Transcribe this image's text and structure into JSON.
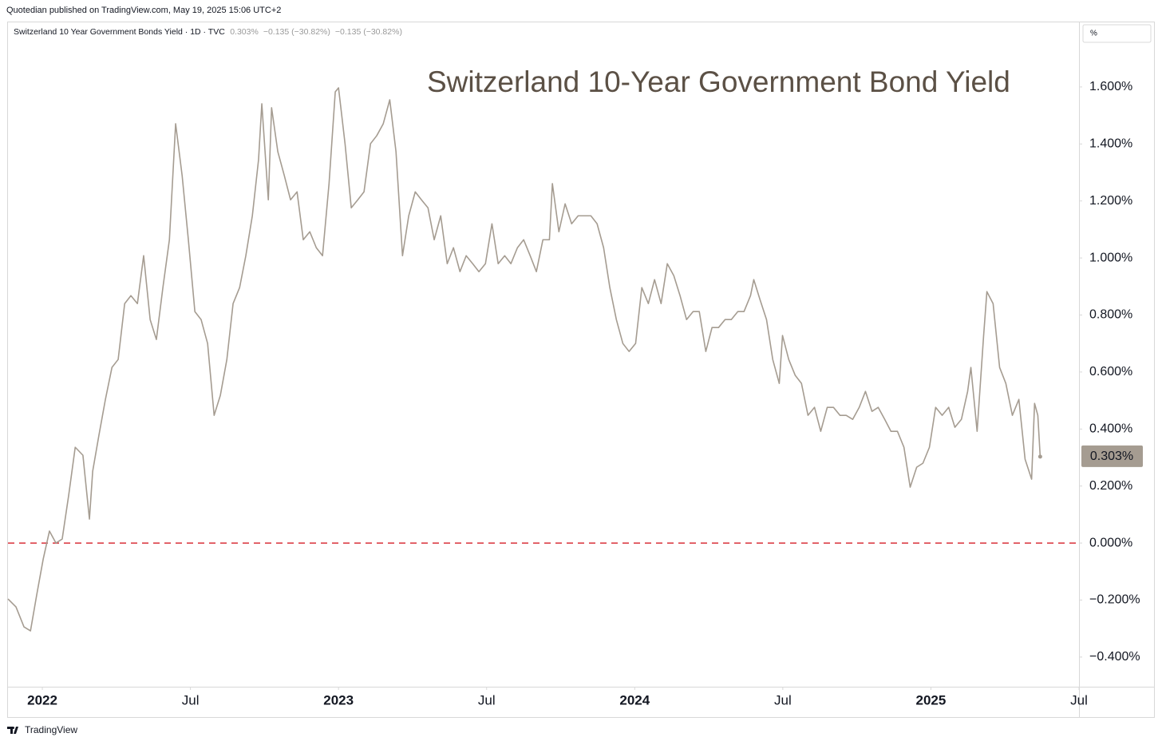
{
  "header": {
    "publisher": "Quotedian published on TradingView.com, May 19, 2025 15:06 UTC+2"
  },
  "footer": {
    "brand": "TradingView"
  },
  "chart_data": {
    "type": "line",
    "title": "Switzerland 10-Year Government Bond Yield",
    "legend_values": [
      "0.303%",
      "−0.135 (−30.82%)",
      "−0.135 (−30.82%)"
    ],
    "scale_mode": "%",
    "x": [
      2021.884,
      2021.911,
      2021.938,
      2021.96,
      2021.981,
      2022.003,
      2022.024,
      2022.046,
      2022.067,
      2022.089,
      2022.111,
      2022.137,
      2022.159,
      2022.17,
      2022.191,
      2022.213,
      2022.235,
      2022.256,
      2022.278,
      2022.299,
      2022.321,
      2022.342,
      2022.364,
      2022.385,
      2022.407,
      2022.429,
      2022.45,
      2022.472,
      2022.493,
      2022.515,
      2022.536,
      2022.558,
      2022.58,
      2022.601,
      2022.623,
      2022.644,
      2022.666,
      2022.687,
      2022.709,
      2022.73,
      2022.741,
      2022.763,
      2022.774,
      2022.795,
      2022.817,
      2022.838,
      2022.86,
      2022.881,
      2022.903,
      2022.925,
      2022.946,
      2022.968,
      2022.989,
      2023.0,
      2023.022,
      2023.043,
      2023.065,
      2023.086,
      2023.108,
      2023.129,
      2023.151,
      2023.173,
      2023.194,
      2023.216,
      2023.237,
      2023.259,
      2023.28,
      2023.302,
      2023.323,
      2023.345,
      2023.367,
      2023.388,
      2023.41,
      2023.431,
      2023.453,
      2023.474,
      2023.496,
      2023.518,
      2023.539,
      2023.561,
      2023.582,
      2023.604,
      2023.625,
      2023.647,
      2023.668,
      2023.69,
      2023.712,
      2023.722,
      2023.744,
      2023.765,
      2023.787,
      2023.809,
      2023.83,
      2023.852,
      2023.873,
      2023.895,
      2023.916,
      2023.938,
      2023.96,
      2023.981,
      2024.003,
      2024.024,
      2024.046,
      2024.067,
      2024.089,
      2024.11,
      2024.132,
      2024.153,
      2024.175,
      2024.197,
      2024.218,
      2024.24,
      2024.261,
      2024.283,
      2024.305,
      2024.326,
      2024.348,
      2024.369,
      2024.391,
      2024.402,
      2024.423,
      2024.445,
      2024.466,
      2024.488,
      2024.499,
      2024.52,
      2024.542,
      2024.563,
      2024.585,
      2024.607,
      2024.628,
      2024.65,
      2024.671,
      2024.693,
      2024.714,
      2024.736,
      2024.758,
      2024.779,
      2024.801,
      2024.822,
      2024.844,
      2024.865,
      2024.887,
      2024.909,
      2024.93,
      2024.952,
      2024.973,
      2024.995,
      2025.016,
      2025.038,
      2025.06,
      2025.081,
      2025.103,
      2025.124,
      2025.135,
      2025.156,
      2025.178,
      2025.189,
      2025.21,
      2025.232,
      2025.253,
      2025.275,
      2025.297,
      2025.318,
      2025.34,
      2025.35,
      2025.361,
      2025.369
    ],
    "series": [
      {
        "name": "Switzerland 10 Year Government Bonds Yield · 1D · TVC",
        "color": "#a59c91",
        "values": [
          -0.196,
          -0.224,
          -0.294,
          -0.308,
          -0.182,
          -0.056,
          0.042,
          0,
          0.014,
          0.168,
          0.336,
          0.308,
          0.084,
          0.252,
          0.378,
          0.504,
          0.616,
          0.644,
          0.84,
          0.868,
          0.84,
          1.008,
          0.784,
          0.714,
          0.896,
          1.064,
          1.471,
          1.289,
          1.064,
          0.812,
          0.784,
          0.7,
          0.448,
          0.518,
          0.644,
          0.84,
          0.896,
          1.008,
          1.148,
          1.345,
          1.541,
          1.204,
          1.527,
          1.373,
          1.289,
          1.204,
          1.232,
          1.064,
          1.092,
          1.036,
          1.008,
          1.261,
          1.583,
          1.597,
          1.401,
          1.176,
          1.204,
          1.232,
          1.401,
          1.429,
          1.471,
          1.555,
          1.373,
          1.008,
          1.148,
          1.232,
          1.204,
          1.176,
          1.064,
          1.148,
          0.98,
          1.036,
          0.952,
          1.008,
          0.98,
          0.952,
          0.98,
          1.12,
          0.98,
          1.008,
          0.98,
          1.036,
          1.064,
          1.008,
          0.952,
          1.064,
          1.064,
          1.261,
          1.092,
          1.19,
          1.12,
          1.148,
          1.148,
          1.148,
          1.12,
          1.036,
          0.896,
          0.784,
          0.7,
          0.672,
          0.7,
          0.896,
          0.84,
          0.924,
          0.84,
          0.98,
          0.938,
          0.868,
          0.784,
          0.812,
          0.812,
          0.672,
          0.756,
          0.756,
          0.784,
          0.784,
          0.812,
          0.812,
          0.868,
          0.924,
          0.854,
          0.784,
          0.644,
          0.56,
          0.728,
          0.644,
          0.588,
          0.56,
          0.448,
          0.476,
          0.392,
          0.476,
          0.476,
          0.448,
          0.448,
          0.434,
          0.476,
          0.532,
          0.462,
          0.476,
          0.434,
          0.392,
          0.392,
          0.336,
          0.196,
          0.266,
          0.28,
          0.336,
          0.476,
          0.448,
          0.476,
          0.406,
          0.434,
          0.532,
          0.616,
          0.392,
          0.728,
          0.882,
          0.84,
          0.616,
          0.56,
          0.448,
          0.504,
          0.294,
          0.224,
          0.49,
          0.448,
          0.303
        ]
      }
    ],
    "last_label": {
      "value": 0.303,
      "label": "0.303%",
      "color": "#a59c91"
    },
    "reference_line": {
      "value": 0,
      "color": "#d9303a",
      "style": "dashed"
    },
    "xlim": [
      2021.884,
      2025.5
    ],
    "xticks": [
      2022,
      {
        "value": 2022.5,
        "label": "Jul"
      },
      2023,
      {
        "value": 2023.5,
        "label": "Jul"
      },
      2024,
      {
        "value": 2024.5,
        "label": "Jul"
      },
      2025,
      {
        "value": 2025.5,
        "label": "Jul"
      }
    ],
    "ylim": [
      -0.504,
      1.821
    ],
    "yticks": [
      {
        "value": -0.4,
        "label": "−0.400%"
      },
      {
        "value": -0.2,
        "label": "−0.200%"
      },
      {
        "value": 0,
        "label": "0.000%"
      },
      {
        "value": 0.2,
        "label": "0.200%"
      },
      {
        "value": 0.4,
        "label": "0.400%"
      },
      {
        "value": 0.6,
        "label": "0.600%"
      },
      {
        "value": 0.8,
        "label": "0.800%"
      },
      {
        "value": 1.0,
        "label": "1.000%"
      },
      {
        "value": 1.2,
        "label": "1.200%"
      },
      {
        "value": 1.4,
        "label": "1.400%"
      },
      {
        "value": 1.6,
        "label": "1.600%"
      }
    ],
    "grid": false
  }
}
